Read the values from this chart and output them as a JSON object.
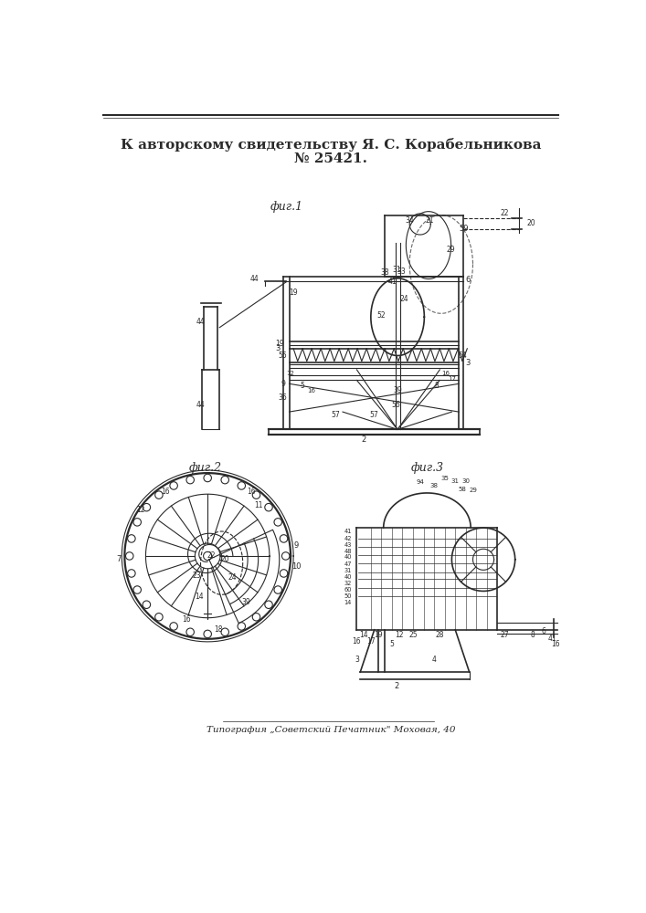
{
  "title_line1": "К авторскому свидетельству Я. С. Корабельникова",
  "title_line2": "№ 25421.",
  "footer": "Типография „Советский Печатник\" Моховая, 40",
  "fig1_label": "фиг.1",
  "fig2_label": "фиг.2",
  "fig3_label": "фиг.3",
  "bg_color": "#ffffff",
  "line_color": "#2a2a2a"
}
